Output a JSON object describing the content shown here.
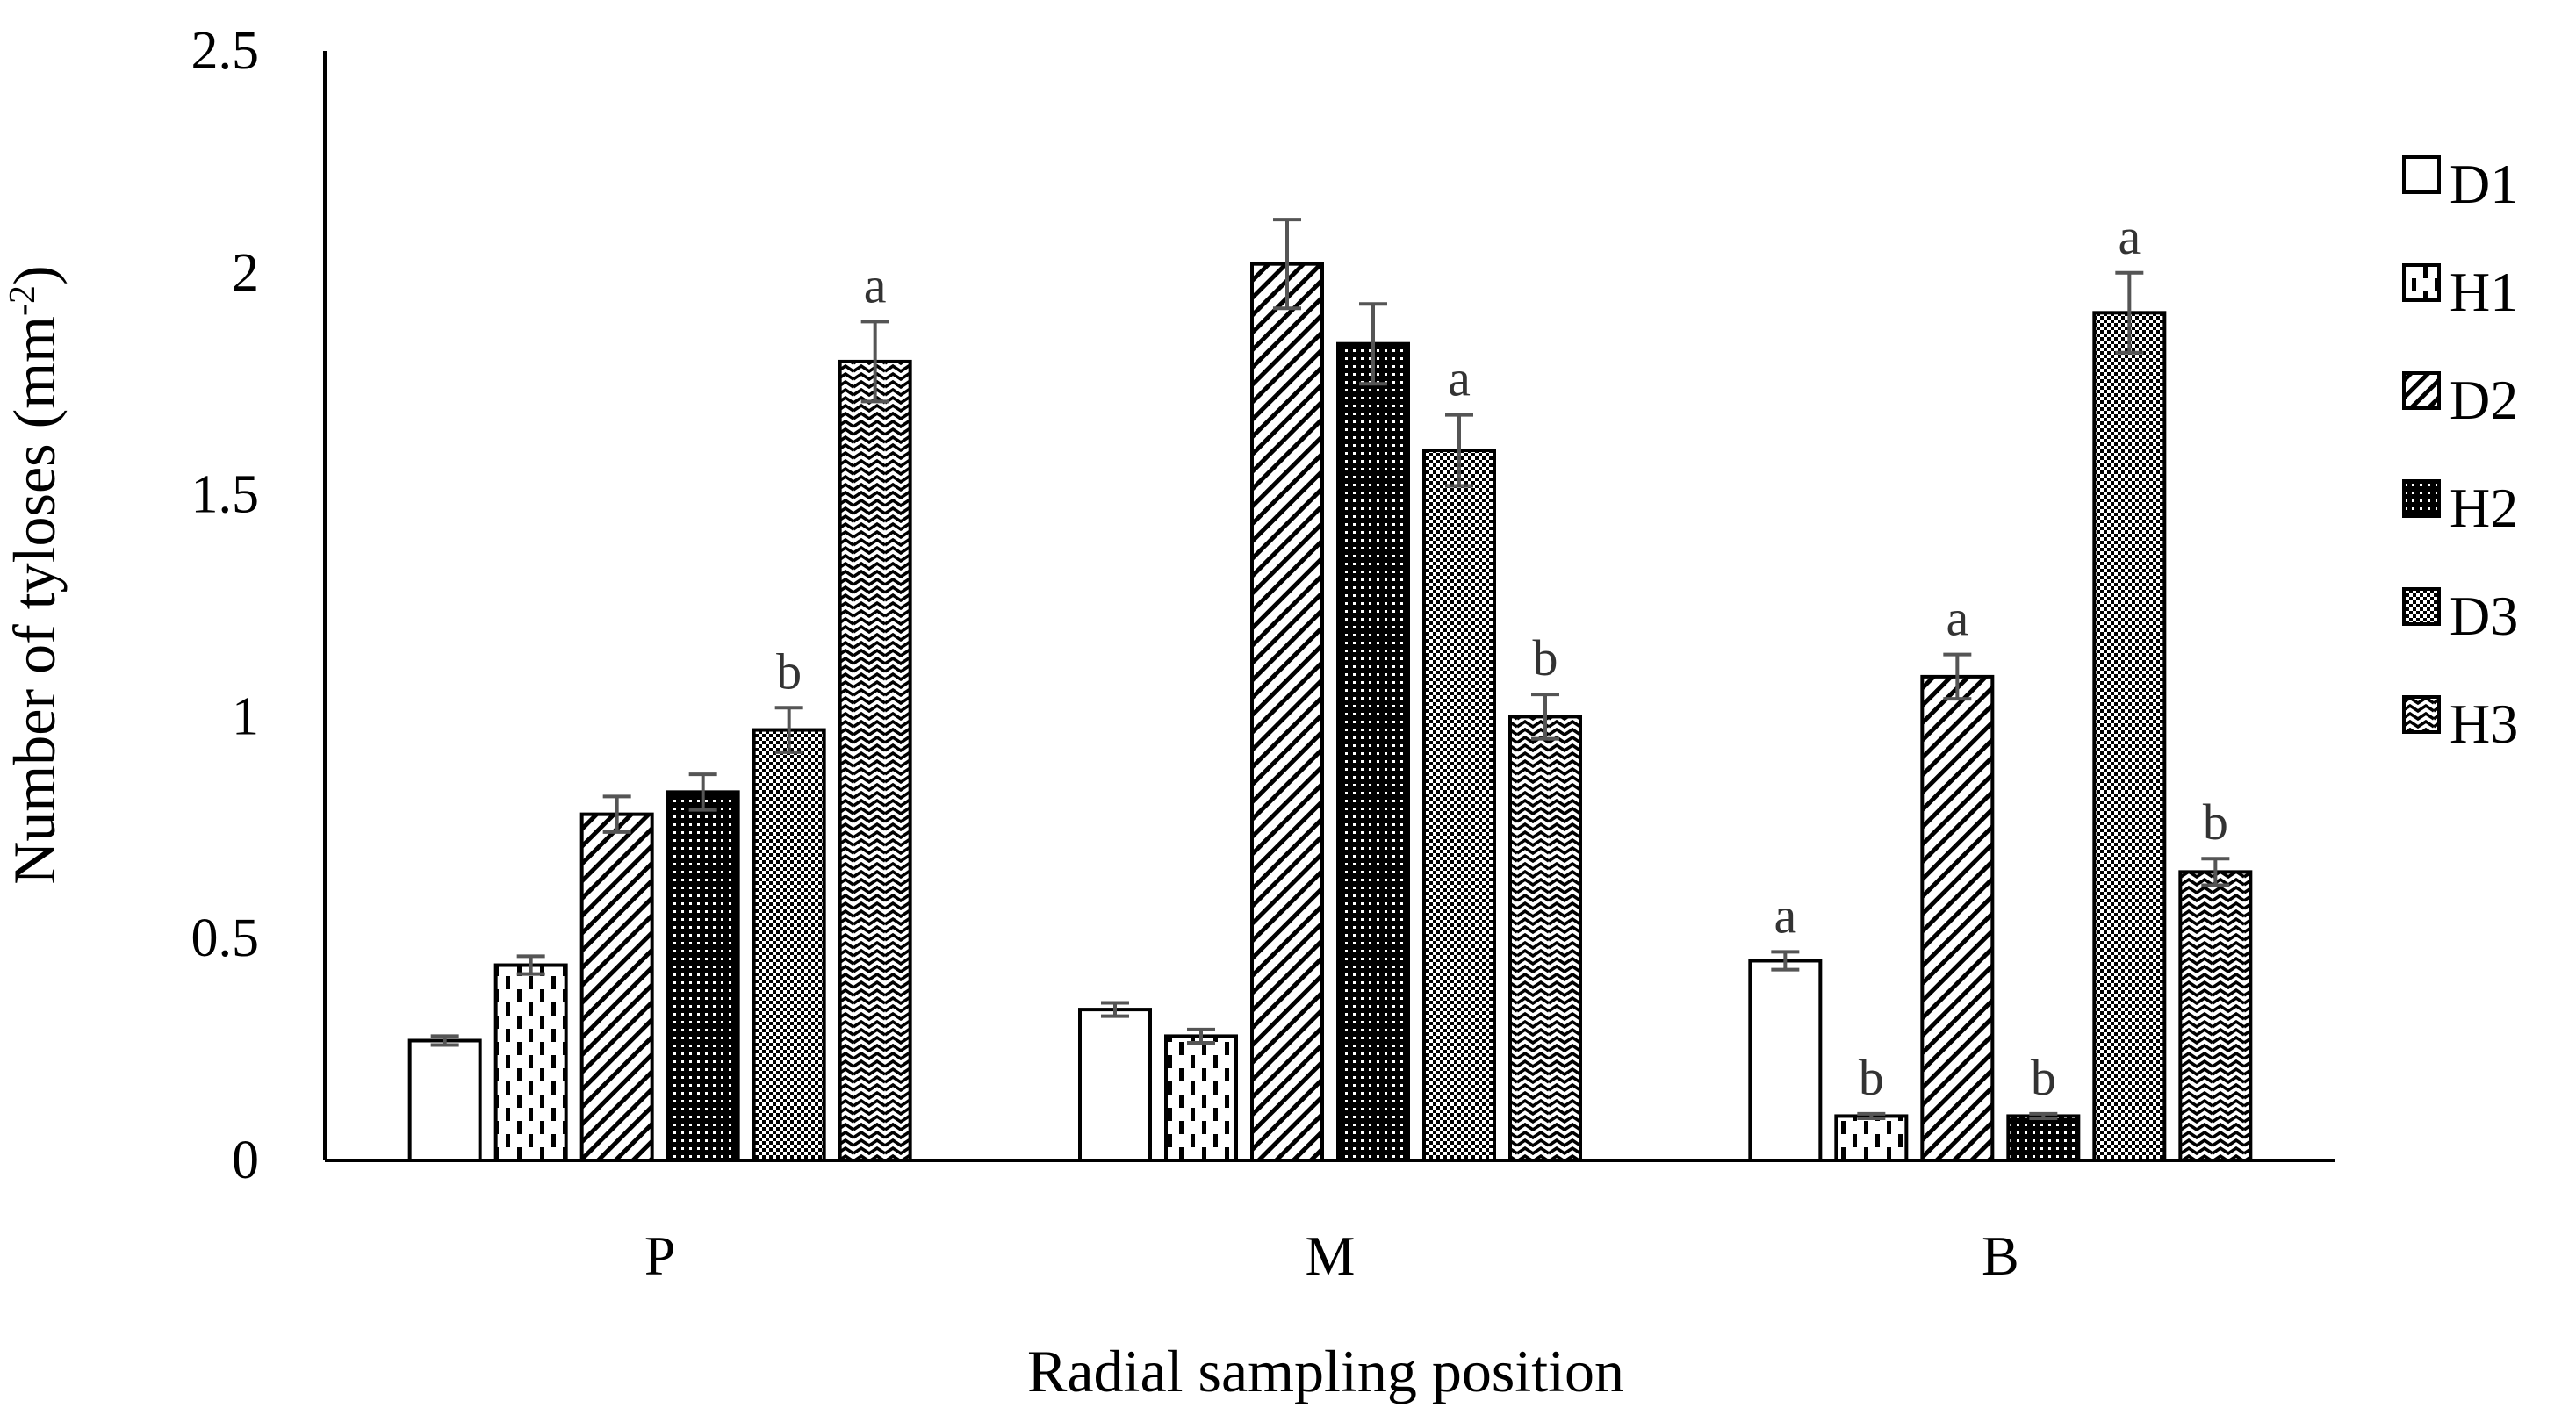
{
  "chart_data": {
    "type": "bar",
    "title": "",
    "xlabel": "Radial sampling position",
    "ylabel": "Number of tyloses (mm",
    "ylabel_sup": "-2",
    "ylabel_close": ")",
    "ylim": [
      0,
      2.5
    ],
    "yticks": [
      0,
      0.5,
      1,
      1.5,
      2,
      2.5
    ],
    "ytick_labels": [
      "0",
      "0.5",
      "1",
      "1.5",
      "2",
      "2.5"
    ],
    "grid": false,
    "legend_position": "right",
    "categories": [
      "P",
      "M",
      "B"
    ],
    "series": [
      {
        "name": "D1",
        "pattern": "blank",
        "values": [
          0.27,
          0.34,
          0.45
        ],
        "errors": [
          0.01,
          0.015,
          0.02
        ],
        "annotations": [
          "",
          "",
          "a"
        ]
      },
      {
        "name": "H1",
        "pattern": "dashes",
        "values": [
          0.44,
          0.28,
          0.1
        ],
        "errors": [
          0.02,
          0.015,
          0.005
        ],
        "annotations": [
          "",
          "",
          "b"
        ]
      },
      {
        "name": "D2",
        "pattern": "diagonal",
        "values": [
          0.78,
          2.02,
          1.09
        ],
        "errors": [
          0.04,
          0.1,
          0.05
        ],
        "annotations": [
          "",
          "",
          "a"
        ]
      },
      {
        "name": "H2",
        "pattern": "dense-check",
        "values": [
          0.83,
          1.84,
          0.1
        ],
        "errors": [
          0.04,
          0.09,
          0.005
        ],
        "annotations": [
          "",
          "",
          "b"
        ]
      },
      {
        "name": "D3",
        "pattern": "check",
        "values": [
          0.97,
          1.6,
          1.91
        ],
        "errors": [
          0.05,
          0.08,
          0.09
        ],
        "annotations": [
          "b",
          "a",
          "a"
        ]
      },
      {
        "name": "H3",
        "pattern": "wave",
        "values": [
          1.8,
          1.0,
          0.65
        ],
        "errors": [
          0.09,
          0.05,
          0.03
        ],
        "annotations": [
          "a",
          "b",
          "b"
        ]
      }
    ]
  }
}
